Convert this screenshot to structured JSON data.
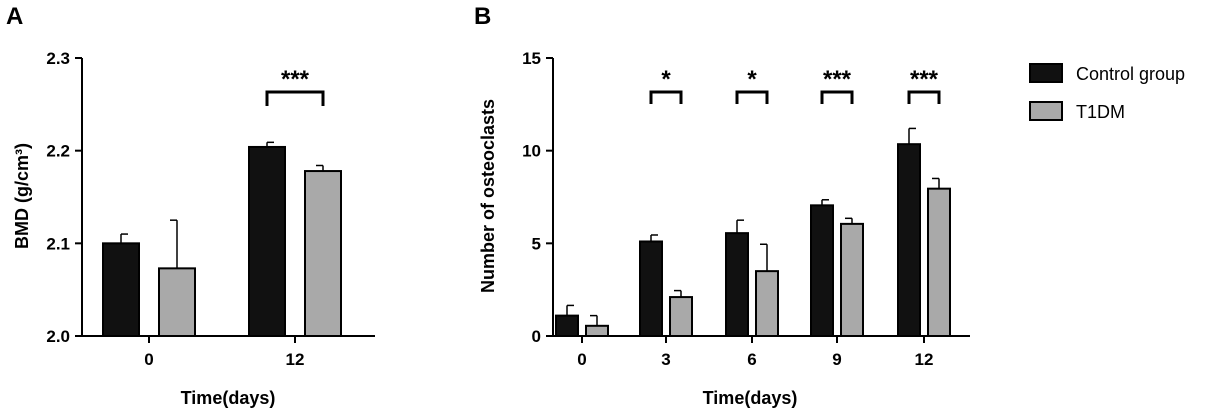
{
  "colors": {
    "control": "#111111",
    "t1dm": "#a9a9a9",
    "axis": "#000000"
  },
  "chart_data": [
    {
      "panel": "A",
      "type": "bar",
      "xlabel": "Time(days)",
      "ylabel": "BMD (g/cm³)",
      "ylim": [
        2.0,
        2.3
      ],
      "yticks": [
        2.0,
        2.1,
        2.2,
        2.3
      ],
      "ytick_labels": [
        "2.0",
        "2.1",
        "2.2",
        "2.3"
      ],
      "categories": [
        "0",
        "12"
      ],
      "series": [
        {
          "values": [
            2.1,
            2.204
          ],
          "errors": [
            0.01,
            0.005
          ]
        },
        {
          "values": [
            2.073,
            2.178
          ],
          "errors": [
            0.052,
            0.006
          ]
        }
      ],
      "significance": [
        {
          "category": "12",
          "label": "***"
        }
      ],
      "grid": false
    },
    {
      "panel": "B",
      "type": "bar",
      "xlabel": "Time(days)",
      "ylabel": "Number of osteoclasts",
      "ylim": [
        0,
        15
      ],
      "yticks": [
        0,
        5,
        10,
        15
      ],
      "ytick_labels": [
        "0",
        "5",
        "10",
        "15"
      ],
      "categories": [
        "0",
        "3",
        "6",
        "9",
        "12"
      ],
      "series": [
        {
          "name": "Control group",
          "values": [
            1.1,
            5.1,
            5.55,
            7.05,
            10.35
          ],
          "errors": [
            0.55,
            0.35,
            0.7,
            0.3,
            0.85
          ]
        },
        {
          "name": "T1DM",
          "values": [
            0.55,
            2.1,
            3.5,
            6.05,
            7.95
          ],
          "errors": [
            0.55,
            0.35,
            1.45,
            0.3,
            0.55
          ]
        }
      ],
      "significance": [
        {
          "category": "3",
          "label": "*"
        },
        {
          "category": "6",
          "label": "*"
        },
        {
          "category": "9",
          "label": "***"
        },
        {
          "category": "12",
          "label": "***"
        }
      ],
      "legend": {
        "placement": "top-right"
      },
      "grid": false
    }
  ]
}
